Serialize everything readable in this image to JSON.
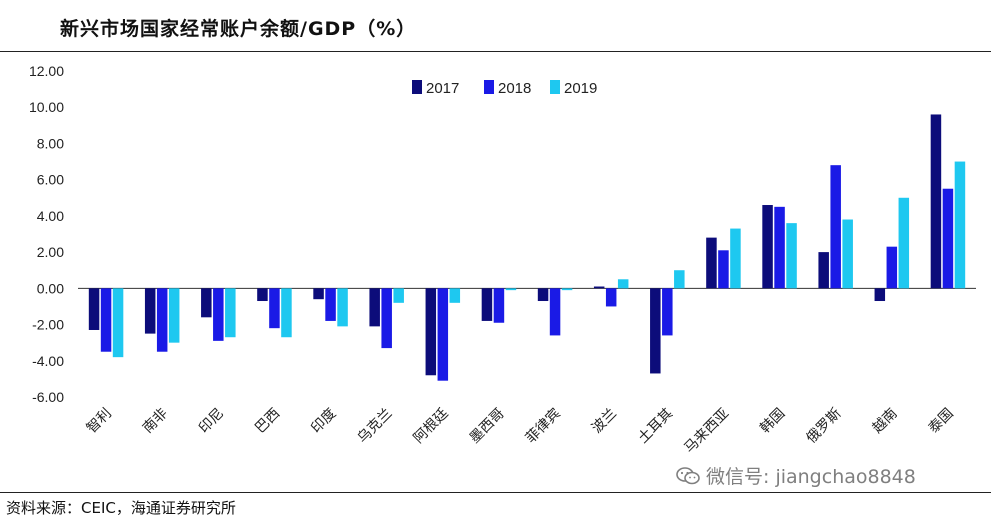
{
  "title": "新兴市场国家经常账户余额/GDP（%）",
  "source": "资料来源：CEIC，海通证券研究所",
  "watermark": {
    "icon": "wechat-icon",
    "text": "微信号: jiangchao8848"
  },
  "colors": {
    "2017": "#0c0c7a",
    "2018": "#1a1ae6",
    "2019": "#1ec8f0"
  },
  "chart_data": {
    "type": "bar",
    "title": "新兴市场国家经常账户余额/GDP（%）",
    "xlabel": "",
    "ylabel": "",
    "ylim": [
      -6,
      12
    ],
    "yticks": [
      "12.00",
      "10.00",
      "8.00",
      "6.00",
      "4.00",
      "2.00",
      "0.00",
      "-2.00",
      "-4.00",
      "-6.00"
    ],
    "legend_position": "top-center",
    "categories": [
      "智利",
      "南非",
      "印尼",
      "巴西",
      "印度",
      "乌克兰",
      "阿根廷",
      "墨西哥",
      "菲律宾",
      "波兰",
      "土耳其",
      "马来西亚",
      "韩国",
      "俄罗斯",
      "越南",
      "泰国"
    ],
    "series": [
      {
        "name": "2017",
        "values": [
          -2.3,
          -2.5,
          -1.6,
          -0.7,
          -0.6,
          -2.1,
          -4.8,
          -1.8,
          -0.7,
          0.1,
          -4.7,
          2.8,
          4.6,
          2.0,
          -0.7,
          9.6
        ]
      },
      {
        "name": "2018",
        "values": [
          -3.5,
          -3.5,
          -2.9,
          -2.2,
          -1.8,
          -3.3,
          -5.1,
          -1.9,
          -2.6,
          -1.0,
          -2.6,
          2.1,
          4.5,
          6.8,
          2.3,
          5.5
        ]
      },
      {
        "name": "2019",
        "values": [
          -3.8,
          -3.0,
          -2.7,
          -2.7,
          -2.1,
          -0.8,
          -0.8,
          -0.1,
          -0.1,
          0.5,
          1.0,
          3.3,
          3.6,
          3.8,
          5.0,
          7.0
        ]
      }
    ]
  }
}
